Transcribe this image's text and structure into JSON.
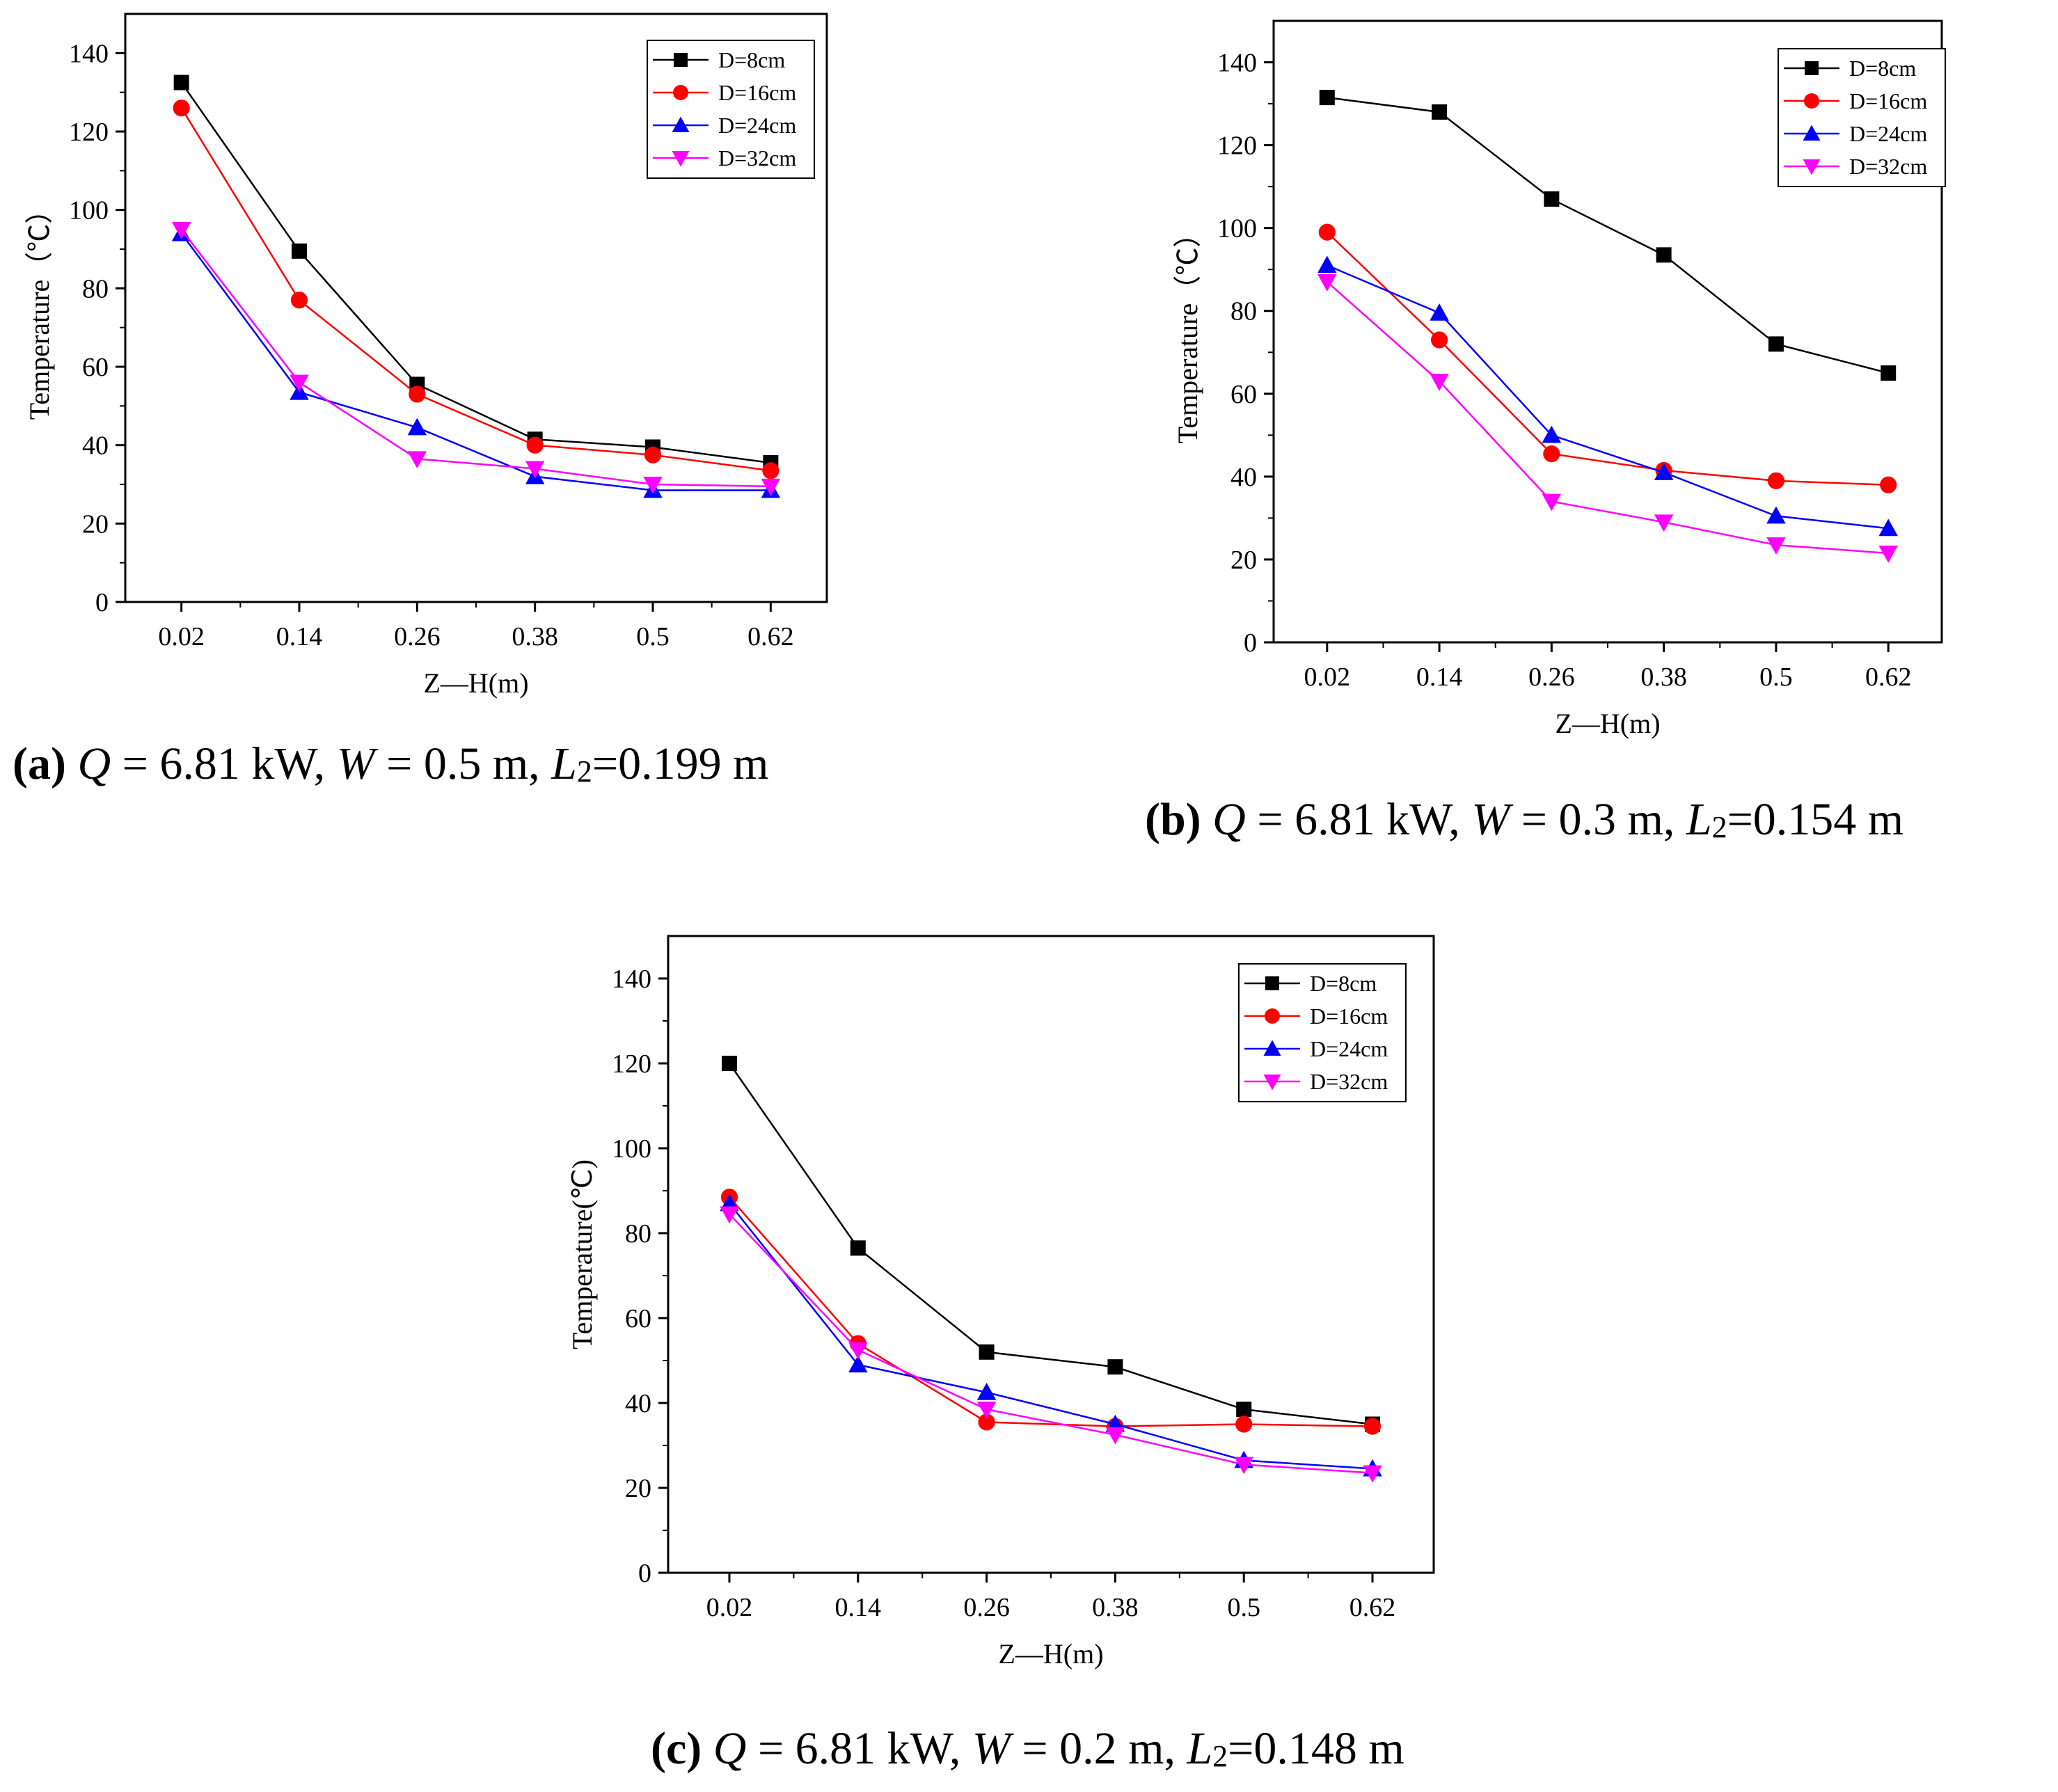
{
  "chart_data": [
    {
      "id": "a",
      "type": "line",
      "xlabel": "Z—H(m)",
      "ylabel": "Temperature（℃）",
      "categories": [
        "0.02",
        "0.14",
        "0.26",
        "0.38",
        "0.5",
        "0.62"
      ],
      "yticks": [
        "0",
        "20",
        "40",
        "60",
        "80",
        "100",
        "120",
        "140"
      ],
      "ylim": [
        0,
        150
      ],
      "legend_position": "top-right",
      "series": [
        {
          "name": "D=8cm",
          "color": "#000000",
          "marker": "square",
          "values": [
            132.5,
            89.5,
            55.5,
            41.5,
            39.5,
            35.5
          ]
        },
        {
          "name": "D=16cm",
          "color": "#ff0000",
          "marker": "circle",
          "values": [
            126,
            77,
            53,
            40,
            37.5,
            33.5
          ]
        },
        {
          "name": "D=24cm",
          "color": "#0000ff",
          "marker": "triangle-up",
          "values": [
            94,
            53.5,
            44.5,
            32,
            28.5,
            28.5
          ]
        },
        {
          "name": "D=32cm",
          "color": "#ff00ff",
          "marker": "triangle-down",
          "values": [
            95,
            56,
            36.5,
            34,
            30,
            29.5
          ]
        }
      ],
      "caption": {
        "tag": "(a)",
        "q_label": "Q",
        "q_value": "= 6.81 kW,",
        "w_label": "W",
        "w_value": "= 0.5 m,",
        "l_label": "L",
        "l_sub": "2",
        "l_value": "=0.199 m"
      }
    },
    {
      "id": "b",
      "type": "line",
      "xlabel": "Z—H(m)",
      "ylabel": "Temperature（℃）",
      "categories": [
        "0.02",
        "0.14",
        "0.26",
        "0.38",
        "0.5",
        "0.62"
      ],
      "yticks": [
        "0",
        "20",
        "40",
        "60",
        "80",
        "100",
        "120",
        "140"
      ],
      "ylim": [
        0,
        150
      ],
      "legend_position": "top-right",
      "series": [
        {
          "name": "D=8cm",
          "color": "#000000",
          "marker": "square",
          "values": [
            131.5,
            128,
            107,
            93.5,
            72,
            65
          ]
        },
        {
          "name": "D=16cm",
          "color": "#ff0000",
          "marker": "circle",
          "values": [
            99,
            73,
            45.5,
            41.5,
            39,
            38
          ]
        },
        {
          "name": "D=24cm",
          "color": "#0000ff",
          "marker": "triangle-up",
          "values": [
            91,
            79.5,
            50,
            41,
            30.5,
            27.5
          ]
        },
        {
          "name": "D=32cm",
          "color": "#ff00ff",
          "marker": "triangle-down",
          "values": [
            87,
            63,
            34,
            29,
            23.5,
            21.5
          ]
        }
      ],
      "caption": {
        "tag": "(b)",
        "q_label": "Q",
        "q_value": "= 6.81 kW,",
        "w_label": "W",
        "w_value": "= 0.3 m,",
        "l_label": "L",
        "l_sub": "2",
        "l_value": "=0.154 m"
      }
    },
    {
      "id": "c",
      "type": "line",
      "xlabel": "Z—H(m)",
      "ylabel": "Temperature(℃)",
      "categories": [
        "0.02",
        "0.14",
        "0.26",
        "0.38",
        "0.5",
        "0.62"
      ],
      "yticks": [
        "0",
        "20",
        "40",
        "60",
        "80",
        "100",
        "120",
        "140"
      ],
      "ylim": [
        0,
        150
      ],
      "legend_position": "top-right",
      "series": [
        {
          "name": "D=8cm",
          "color": "#000000",
          "marker": "square",
          "values": [
            120,
            76.5,
            52,
            48.5,
            38.5,
            35
          ]
        },
        {
          "name": "D=16cm",
          "color": "#ff0000",
          "marker": "circle",
          "values": [
            88.5,
            54,
            35.5,
            34.5,
            35,
            34.5
          ]
        },
        {
          "name": "D=24cm",
          "color": "#0000ff",
          "marker": "triangle-up",
          "values": [
            87,
            49,
            42.5,
            35,
            26.5,
            24.5
          ]
        },
        {
          "name": "D=32cm",
          "color": "#ff00ff",
          "marker": "triangle-down",
          "values": [
            84.5,
            52.5,
            38.5,
            32.5,
            25.5,
            23.5
          ]
        }
      ],
      "caption": {
        "tag": "(c)",
        "q_label": "Q",
        "q_value": "= 6.81 kW,",
        "w_label": "W",
        "w_value": "= 0.2 m,",
        "l_label": "L",
        "l_sub": "2",
        "l_value": "=0.148 m"
      }
    }
  ]
}
